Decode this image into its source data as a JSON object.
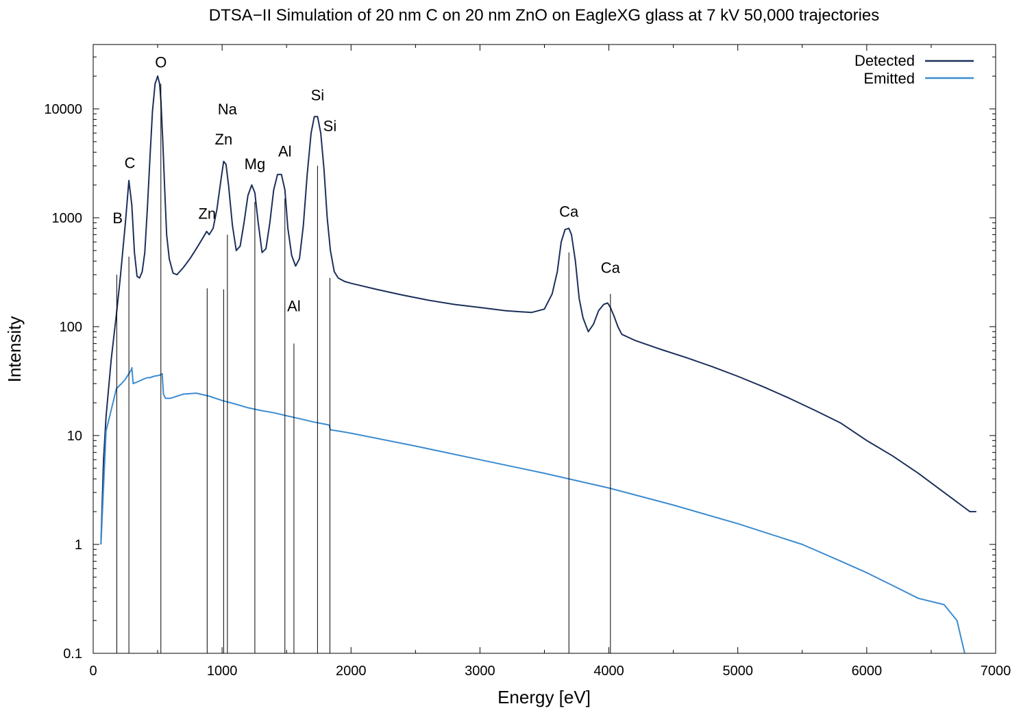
{
  "chart_data": {
    "type": "line",
    "title": "DTSA−II Simulation of 20 nm C on 20 nm ZnO on EagleXG glass at 7 kV 50,000 trajectories",
    "xlabel": "Energy [eV]",
    "ylabel": "Intensity",
    "xlim": [
      0,
      7000
    ],
    "ylim": [
      0.1,
      35000
    ],
    "yscale": "log",
    "grid": false,
    "legend_position": "top-right",
    "x_ticks": [
      {
        "value": 0,
        "label": "0"
      },
      {
        "value": 1000,
        "label": "1000"
      },
      {
        "value": 2000,
        "label": "2000"
      },
      {
        "value": 3000,
        "label": "3000"
      },
      {
        "value": 4000,
        "label": "4000"
      },
      {
        "value": 5000,
        "label": "5000"
      },
      {
        "value": 6000,
        "label": "6000"
      },
      {
        "value": 7000,
        "label": "7000"
      }
    ],
    "y_ticks": [
      {
        "value": 0.1,
        "label": "0.1"
      },
      {
        "value": 1,
        "label": "1"
      },
      {
        "value": 10,
        "label": "10"
      },
      {
        "value": 100,
        "label": "100"
      },
      {
        "value": 1000,
        "label": "1000"
      },
      {
        "value": 10000,
        "label": "10000"
      }
    ],
    "series": [
      {
        "name": "Detected",
        "color": "#1b2f5a",
        "x": [
          60,
          80,
          100,
          140,
          180,
          210,
          250,
          277,
          300,
          320,
          340,
          360,
          380,
          400,
          420,
          440,
          460,
          480,
          500,
          515,
          525,
          540,
          555,
          570,
          590,
          620,
          650,
          700,
          750,
          800,
          850,
          880,
          900,
          930,
          960,
          990,
          1012,
          1030,
          1050,
          1080,
          1110,
          1140,
          1170,
          1200,
          1230,
          1254,
          1280,
          1310,
          1340,
          1370,
          1400,
          1430,
          1460,
          1487,
          1510,
          1540,
          1570,
          1600,
          1630,
          1660,
          1690,
          1715,
          1740,
          1765,
          1790,
          1815,
          1840,
          1870,
          1900,
          1950,
          2000,
          2200,
          2400,
          2600,
          2800,
          3000,
          3200,
          3400,
          3500,
          3560,
          3600,
          3630,
          3660,
          3690,
          3710,
          3740,
          3770,
          3800,
          3840,
          3880,
          3920,
          3960,
          3990,
          4012,
          4040,
          4070,
          4100,
          4200,
          4400,
          4600,
          4800,
          5000,
          5200,
          5400,
          5600,
          5800,
          6000,
          6200,
          6400,
          6600,
          6800,
          6850
        ],
        "y": [
          1,
          6,
          15,
          50,
          130,
          280,
          900,
          2200,
          1300,
          480,
          290,
          280,
          320,
          480,
          1200,
          3500,
          9500,
          17000,
          20000,
          17000,
          12000,
          5000,
          1800,
          700,
          420,
          310,
          300,
          350,
          420,
          520,
          650,
          750,
          700,
          800,
          1200,
          2200,
          3300,
          3100,
          2000,
          850,
          500,
          550,
          900,
          1600,
          2000,
          1700,
          900,
          480,
          520,
          900,
          1800,
          2500,
          2500,
          1800,
          800,
          450,
          360,
          420,
          850,
          2500,
          6000,
          8500,
          8500,
          6000,
          2800,
          1000,
          500,
          320,
          280,
          260,
          250,
          220,
          195,
          175,
          160,
          150,
          140,
          135,
          145,
          200,
          320,
          600,
          780,
          800,
          700,
          400,
          180,
          120,
          90,
          105,
          140,
          160,
          165,
          150,
          125,
          100,
          85,
          75,
          62,
          52,
          43,
          35,
          28,
          22,
          17,
          13,
          9,
          6.5,
          4.5,
          3,
          2,
          2
        ]
      },
      {
        "name": "Emitted",
        "color": "#3b8bd0",
        "x": [
          60,
          100,
          180,
          220,
          250,
          277,
          295,
          300,
          310,
          340,
          390,
          420,
          440,
          470,
          500,
          520,
          535,
          545,
          560,
          600,
          700,
          800,
          900,
          1000,
          1100,
          1200,
          1300,
          1400,
          1500,
          1600,
          1700,
          1800,
          1830,
          1840,
          1900,
          2000,
          2500,
          3000,
          3500,
          4000,
          4500,
          5000,
          5500,
          5800,
          6000,
          6200,
          6400,
          6600,
          6700,
          6760
        ],
        "y": [
          1,
          11,
          27,
          30,
          33,
          37,
          40,
          42,
          30,
          31,
          33,
          34,
          34,
          35,
          35.5,
          36,
          37,
          24,
          22,
          22,
          24,
          24.5,
          23,
          21,
          19.5,
          18,
          17,
          16.2,
          15.2,
          14.3,
          13.4,
          12.7,
          12.5,
          11.3,
          11,
          10.5,
          8,
          6,
          4.5,
          3.3,
          2.3,
          1.55,
          1,
          0.7,
          0.55,
          0.42,
          0.32,
          0.28,
          0.2,
          0.1
        ]
      }
    ],
    "marker_lines": [
      {
        "x": 183,
        "top": 300
      },
      {
        "x": 277,
        "top": 440
      },
      {
        "x": 525,
        "top": 17000
      },
      {
        "x": 884,
        "top": 225
      },
      {
        "x": 1012,
        "top": 220
      },
      {
        "x": 1041,
        "top": 700
      },
      {
        "x": 1254,
        "top": 1400
      },
      {
        "x": 1487,
        "top": 1500
      },
      {
        "x": 1557,
        "top": 70
      },
      {
        "x": 1740,
        "top": 3000
      },
      {
        "x": 1836,
        "top": 280
      },
      {
        "x": 3690,
        "top": 480
      },
      {
        "x": 4012,
        "top": 200
      }
    ],
    "annotations": [
      {
        "text": "O",
        "x": 525,
        "y": 27000
      },
      {
        "text": "C",
        "x": 285,
        "y": 3200
      },
      {
        "text": "B",
        "x": 190,
        "y": 1000
      },
      {
        "text": "Na",
        "x": 1041,
        "y": 10000
      },
      {
        "text": "Zn",
        "x": 1012,
        "y": 5300
      },
      {
        "text": "Zn",
        "x": 884,
        "y": 1100
      },
      {
        "text": "Mg",
        "x": 1254,
        "y": 3150
      },
      {
        "text": "Al",
        "x": 1487,
        "y": 4100
      },
      {
        "text": "Al",
        "x": 1557,
        "y": 155
      },
      {
        "text": "Si",
        "x": 1740,
        "y": 13500
      },
      {
        "text": "Si",
        "x": 1836,
        "y": 7000
      },
      {
        "text": "Ca",
        "x": 3690,
        "y": 1150
      },
      {
        "text": "Ca",
        "x": 4012,
        "y": 350
      }
    ]
  }
}
